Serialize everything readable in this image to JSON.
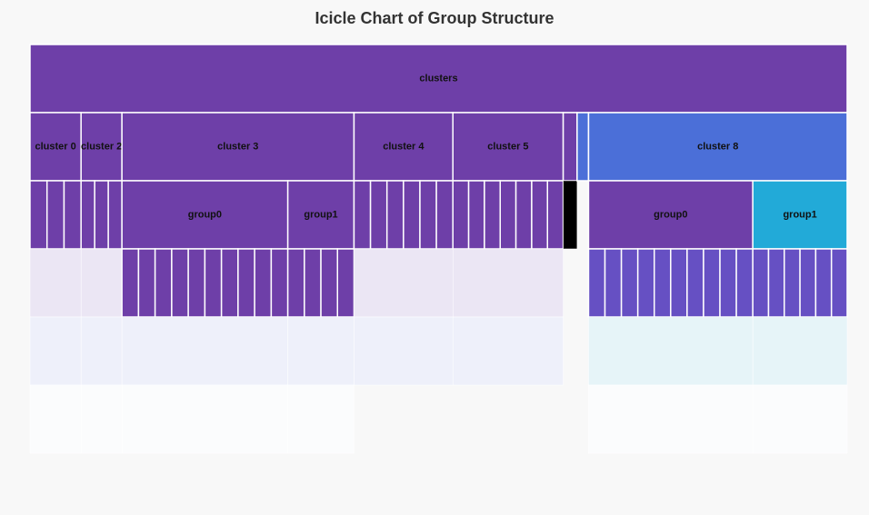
{
  "chart_data": {
    "type": "icicle",
    "title": "Icicle Chart of Group Structure",
    "colors": {
      "background": "#f8f8f8",
      "purple": "#6e3fa8",
      "violet": "#6650c3",
      "blue": "#4b6fd8",
      "cyan": "#22aad8",
      "faint_lavender": "#ebe6f4",
      "faint_blue": "#eef0fa",
      "faint_cyan": "#e6f4f8",
      "nearly_white": "#fbfcfd",
      "stroke": "#ffffff"
    },
    "root": {
      "label": "clusters",
      "value": 100,
      "color": "purple",
      "children": [
        {
          "label": "cluster 0",
          "value": 6.25,
          "color": "purple",
          "leaf_counts": [
            3,
            0,
            0,
            0
          ]
        },
        {
          "label": "cluster 2",
          "value": 5.0,
          "color": "purple",
          "leaf_counts": [
            3,
            0,
            0,
            0
          ]
        },
        {
          "label": "cluster 3",
          "value": 28.4,
          "color": "purple",
          "children": [
            {
              "label": "group0",
              "value": 20.3,
              "color": "purple",
              "leaf_counts": [
                10,
                0,
                0
              ]
            },
            {
              "label": "group1",
              "value": 8.1,
              "color": "purple",
              "leaf_counts": [
                4,
                0,
                0
              ]
            }
          ]
        },
        {
          "label": "cluster 4",
          "value": 12.1,
          "color": "purple",
          "leaf_counts": [
            6,
            0,
            0
          ]
        },
        {
          "label": "cluster 5",
          "value": 13.5,
          "color": "purple",
          "leaf_counts": [
            7,
            0,
            0
          ]
        },
        {
          "label": "",
          "value": 1.7,
          "color": "purple",
          "leaf_counts": [
            0
          ]
        },
        {
          "label": "",
          "value": 1.4,
          "color": "blue",
          "leaf_counts": []
        },
        {
          "label": "cluster 8",
          "value": 31.65,
          "color": "blue",
          "children": [
            {
              "label": "group0",
              "value": 20.1,
              "color": "purple",
              "leaf_counts": [
                10,
                0,
                0
              ]
            },
            {
              "label": "group1",
              "value": 11.55,
              "color": "cyan",
              "leaf_counts": [
                6,
                0,
                0
              ]
            }
          ]
        }
      ]
    },
    "levels": 6
  }
}
